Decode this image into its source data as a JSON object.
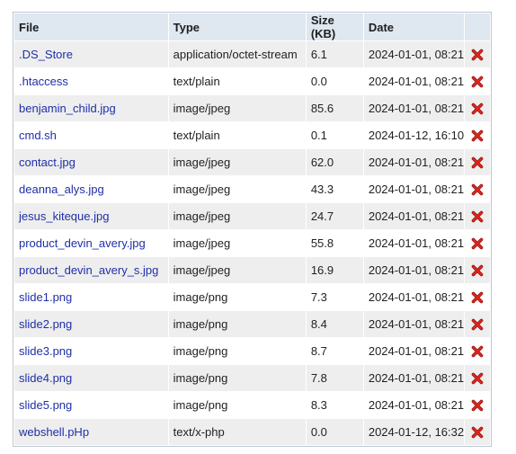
{
  "table": {
    "headers": {
      "file": "File",
      "type": "Type",
      "size": "Size (KB)",
      "date": "Date"
    },
    "rows": [
      {
        "file": ".DS_Store",
        "type": "application/octet-stream",
        "size": "6.1",
        "date": "2024-01-01, 08:21",
        "action_icon": "delete-icon"
      },
      {
        "file": ".htaccess",
        "type": "text/plain",
        "size": "0.0",
        "date": "2024-01-01, 08:21",
        "action_icon": "delete-icon"
      },
      {
        "file": "benjamin_child.jpg",
        "type": "image/jpeg",
        "size": "85.6",
        "date": "2024-01-01, 08:21",
        "action_icon": "delete-icon"
      },
      {
        "file": "cmd.sh",
        "type": "text/plain",
        "size": "0.1",
        "date": "2024-01-12, 16:10",
        "action_icon": "delete-icon"
      },
      {
        "file": "contact.jpg",
        "type": "image/jpeg",
        "size": "62.0",
        "date": "2024-01-01, 08:21",
        "action_icon": "delete-icon"
      },
      {
        "file": "deanna_alys.jpg",
        "type": "image/jpeg",
        "size": "43.3",
        "date": "2024-01-01, 08:21",
        "action_icon": "delete-icon"
      },
      {
        "file": "jesus_kiteque.jpg",
        "type": "image/jpeg",
        "size": "24.7",
        "date": "2024-01-01, 08:21",
        "action_icon": "delete-icon"
      },
      {
        "file": "product_devin_avery.jpg",
        "type": "image/jpeg",
        "size": "55.8",
        "date": "2024-01-01, 08:21",
        "action_icon": "delete-icon"
      },
      {
        "file": "product_devin_avery_s.jpg",
        "type": "image/jpeg",
        "size": "16.9",
        "date": "2024-01-01, 08:21",
        "action_icon": "delete-icon"
      },
      {
        "file": "slide1.png",
        "type": "image/png",
        "size": "7.3",
        "date": "2024-01-01, 08:21",
        "action_icon": "delete-icon"
      },
      {
        "file": "slide2.png",
        "type": "image/png",
        "size": "8.4",
        "date": "2024-01-01, 08:21",
        "action_icon": "delete-icon"
      },
      {
        "file": "slide3.png",
        "type": "image/png",
        "size": "8.7",
        "date": "2024-01-01, 08:21",
        "action_icon": "delete-icon"
      },
      {
        "file": "slide4.png",
        "type": "image/png",
        "size": "7.8",
        "date": "2024-01-01, 08:21",
        "action_icon": "delete-icon"
      },
      {
        "file": "slide5.png",
        "type": "image/png",
        "size": "8.3",
        "date": "2024-01-01, 08:21",
        "action_icon": "delete-icon"
      },
      {
        "file": "webshell.pHp",
        "type": "text/x-php",
        "size": "0.0",
        "date": "2024-01-12, 16:32",
        "action_icon": "delete-icon"
      }
    ]
  },
  "colors": {
    "link": "#1f2fa8",
    "header_bg": "#dfe7f1",
    "row_alt_bg": "#eeeeee",
    "delete": "#d9251d"
  }
}
